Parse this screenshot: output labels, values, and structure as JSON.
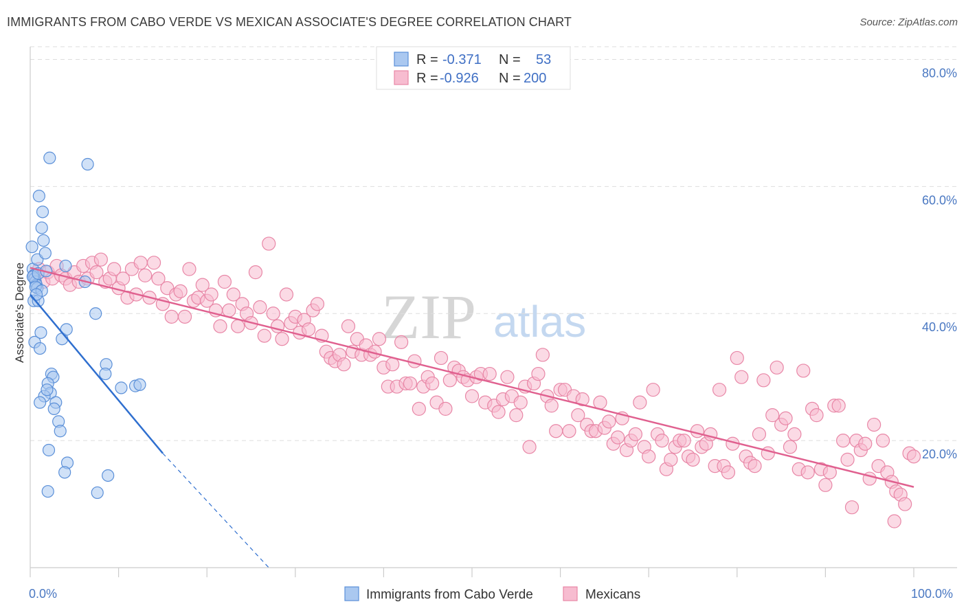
{
  "header": {
    "title": "IMMIGRANTS FROM CABO VERDE VS MEXICAN ASSOCIATE'S DEGREE CORRELATION CHART",
    "source": "Source: ZipAtlas.com"
  },
  "watermark": {
    "part1": "ZIP",
    "part2": "atlas"
  },
  "colors": {
    "blue_fill": "#aac8f0",
    "blue_stroke": "#5a8fd8",
    "blue_line": "#2f6fcf",
    "pink_fill": "#f7bcd0",
    "pink_stroke": "#e886a6",
    "pink_line": "#e0608f",
    "grid": "#dddddd",
    "tick_text": "#4a78c2"
  },
  "legend": {
    "rows": [
      {
        "r_label": "R =",
        "r_value": "-0.371",
        "n_label": "N =",
        "n_value": "53"
      },
      {
        "r_label": "R =",
        "r_value": "-0.926",
        "n_label": "N =",
        "n_value": "200"
      }
    ]
  },
  "bottom_legend": {
    "items": [
      {
        "label": "Immigrants from Cabo Verde"
      },
      {
        "label": "Mexicans"
      }
    ]
  },
  "chart_data": {
    "type": "scatter",
    "title": "IMMIGRANTS FROM CABO VERDE VS MEXICAN ASSOCIATE'S DEGREE CORRELATION CHART",
    "xlabel": "",
    "ylabel": "Associate's Degree",
    "xlim": [
      0,
      100
    ],
    "ylim": [
      0,
      82
    ],
    "x_tick_labels": [
      "0.0%",
      "100.0%"
    ],
    "y_ticks": [
      20,
      40,
      60,
      80
    ],
    "y_tick_labels": [
      "20.0%",
      "40.0%",
      "60.0%",
      "80.0%"
    ],
    "grid": true,
    "legend_position": "top-center",
    "series": [
      {
        "name": "Immigrants from Cabo Verde",
        "r": -0.371,
        "n": 53,
        "trend": {
          "x0": 0,
          "y0": 43,
          "x1": 15,
          "y1": 18,
          "dash_to_x": 27,
          "dash_to_y": 0
        },
        "points": [
          [
            0.2,
            50.5
          ],
          [
            0.3,
            47
          ],
          [
            0.4,
            46
          ],
          [
            0.5,
            45.5
          ],
          [
            0.6,
            45
          ],
          [
            0.7,
            44.5
          ],
          [
            0.8,
            44
          ],
          [
            0.4,
            42
          ],
          [
            0.9,
            42
          ],
          [
            0.5,
            35.5
          ],
          [
            1.1,
            34.5
          ],
          [
            1.2,
            37
          ],
          [
            0.8,
            48.5
          ],
          [
            1.5,
            51.5
          ],
          [
            1.7,
            49.5
          ],
          [
            1.3,
            53.5
          ],
          [
            1.4,
            56
          ],
          [
            1.0,
            58.5
          ],
          [
            2.2,
            64.5
          ],
          [
            6.5,
            63.5
          ],
          [
            3.6,
            36
          ],
          [
            4.1,
            37.5
          ],
          [
            4.0,
            47.5
          ],
          [
            6.2,
            45
          ],
          [
            7.4,
            40
          ],
          [
            2.4,
            30.5
          ],
          [
            2.6,
            30
          ],
          [
            2.0,
            29
          ],
          [
            2.3,
            27.5
          ],
          [
            1.6,
            27
          ],
          [
            1.1,
            26
          ],
          [
            2.9,
            26
          ],
          [
            3.2,
            23
          ],
          [
            3.4,
            21.5
          ],
          [
            2.1,
            18.5
          ],
          [
            4.2,
            16.5
          ],
          [
            3.9,
            15
          ],
          [
            8.6,
            32
          ],
          [
            8.5,
            30.5
          ],
          [
            10.3,
            28.3
          ],
          [
            11.9,
            28.6
          ],
          [
            12.4,
            28.8
          ],
          [
            8.8,
            14.5
          ],
          [
            2.0,
            12
          ],
          [
            7.6,
            11.8
          ],
          [
            0.3,
            45.8
          ],
          [
            0.9,
            46.3
          ],
          [
            1.8,
            46.7
          ],
          [
            0.6,
            44.2
          ],
          [
            1.3,
            43.6
          ],
          [
            2.7,
            25
          ],
          [
            0.7,
            43
          ],
          [
            1.9,
            28
          ]
        ]
      },
      {
        "name": "Mexicans",
        "r": -0.926,
        "n": 200,
        "trend": {
          "x0": 0,
          "y0": 47.2,
          "x1": 100,
          "y1": 12.7
        },
        "points": [
          [
            0.5,
            46
          ],
          [
            1,
            47
          ],
          [
            1.5,
            45
          ],
          [
            2,
            46.5
          ],
          [
            2.5,
            45.5
          ],
          [
            3,
            47.5
          ],
          [
            3.5,
            46
          ],
          [
            4,
            45.5
          ],
          [
            4.5,
            44.5
          ],
          [
            5,
            46.5
          ],
          [
            5.5,
            45
          ],
          [
            6,
            47.5
          ],
          [
            6.5,
            45.5
          ],
          [
            7,
            48
          ],
          [
            7.5,
            46.5
          ],
          [
            8,
            48.5
          ],
          [
            8.5,
            45
          ],
          [
            9,
            45.5
          ],
          [
            9.5,
            47
          ],
          [
            10,
            44
          ],
          [
            10.5,
            45.5
          ],
          [
            11,
            42.5
          ],
          [
            11.5,
            47
          ],
          [
            12,
            43
          ],
          [
            12.5,
            48
          ],
          [
            13,
            46
          ],
          [
            13.5,
            42.5
          ],
          [
            14,
            48
          ],
          [
            14.5,
            45.5
          ],
          [
            15,
            41.5
          ],
          [
            15.5,
            44
          ],
          [
            16,
            39.5
          ],
          [
            16.5,
            43
          ],
          [
            17,
            43.5
          ],
          [
            17.5,
            39.5
          ],
          [
            18,
            47
          ],
          [
            18.5,
            42
          ],
          [
            19,
            42.5
          ],
          [
            19.5,
            44.5
          ],
          [
            20,
            42
          ],
          [
            20.5,
            43
          ],
          [
            21,
            40.5
          ],
          [
            21.5,
            38
          ],
          [
            22,
            45
          ],
          [
            22.5,
            40.5
          ],
          [
            23,
            43
          ],
          [
            23.5,
            38
          ],
          [
            24,
            41.5
          ],
          [
            24.5,
            40
          ],
          [
            25,
            38.5
          ],
          [
            25.5,
            46.5
          ],
          [
            26,
            41
          ],
          [
            26.5,
            36.5
          ],
          [
            27,
            51
          ],
          [
            27.5,
            40
          ],
          [
            28,
            38
          ],
          [
            28.5,
            36
          ],
          [
            29,
            43
          ],
          [
            29.5,
            38.5
          ],
          [
            30,
            39.5
          ],
          [
            30.5,
            37
          ],
          [
            31,
            39
          ],
          [
            31.5,
            37.5
          ],
          [
            32,
            40.5
          ],
          [
            32.5,
            41.5
          ],
          [
            33,
            36.5
          ],
          [
            33.5,
            34
          ],
          [
            34,
            33
          ],
          [
            34.5,
            32.5
          ],
          [
            35,
            33.5
          ],
          [
            35.5,
            32
          ],
          [
            36,
            38
          ],
          [
            36.5,
            34
          ],
          [
            37,
            36
          ],
          [
            37.5,
            33.5
          ],
          [
            38,
            35
          ],
          [
            38.5,
            33.5
          ],
          [
            39,
            34
          ],
          [
            39.5,
            36
          ],
          [
            40,
            31.5
          ],
          [
            40.5,
            28.5
          ],
          [
            41,
            32
          ],
          [
            41.5,
            28.5
          ],
          [
            42,
            35.5
          ],
          [
            42.5,
            29
          ],
          [
            43,
            29
          ],
          [
            43.5,
            32.5
          ],
          [
            44,
            25
          ],
          [
            44.5,
            28.5
          ],
          [
            45,
            30
          ],
          [
            45.5,
            29
          ],
          [
            46,
            26
          ],
          [
            46.5,
            33
          ],
          [
            47,
            25
          ],
          [
            47.5,
            29.5
          ],
          [
            48,
            31.5
          ],
          [
            48.5,
            31
          ],
          [
            49,
            30
          ],
          [
            49.5,
            29.5
          ],
          [
            50,
            27
          ],
          [
            50.5,
            30
          ],
          [
            51,
            30.5
          ],
          [
            51.5,
            26
          ],
          [
            52,
            30.5
          ],
          [
            52.5,
            25.5
          ],
          [
            53,
            24.5
          ],
          [
            53.5,
            26.5
          ],
          [
            54,
            30
          ],
          [
            54.5,
            27
          ],
          [
            55,
            24
          ],
          [
            55.5,
            26
          ],
          [
            56,
            28.5
          ],
          [
            56.5,
            19
          ],
          [
            57,
            29
          ],
          [
            57.5,
            30.5
          ],
          [
            58,
            33.5
          ],
          [
            58.5,
            27
          ],
          [
            59,
            25.5
          ],
          [
            59.5,
            21.5
          ],
          [
            60,
            28
          ],
          [
            60.5,
            28
          ],
          [
            61,
            21.5
          ],
          [
            61.5,
            27
          ],
          [
            62,
            24
          ],
          [
            62.5,
            26.5
          ],
          [
            63,
            22.5
          ],
          [
            63.5,
            21.5
          ],
          [
            64,
            21.5
          ],
          [
            64.5,
            26
          ],
          [
            65,
            22
          ],
          [
            65.5,
            23
          ],
          [
            66,
            19.5
          ],
          [
            66.5,
            20.5
          ],
          [
            67,
            23.5
          ],
          [
            67.5,
            18.5
          ],
          [
            68,
            20
          ],
          [
            68.5,
            21
          ],
          [
            69,
            26
          ],
          [
            69.5,
            19
          ],
          [
            70,
            17.5
          ],
          [
            70.5,
            28
          ],
          [
            71,
            21
          ],
          [
            71.5,
            20
          ],
          [
            72,
            15.5
          ],
          [
            72.5,
            17
          ],
          [
            73,
            19
          ],
          [
            73.5,
            20
          ],
          [
            74,
            20
          ],
          [
            74.5,
            17.5
          ],
          [
            75,
            17
          ],
          [
            75.5,
            21.5
          ],
          [
            76,
            19
          ],
          [
            76.5,
            19.5
          ],
          [
            77,
            21
          ],
          [
            77.5,
            16
          ],
          [
            78,
            28
          ],
          [
            78.5,
            16
          ],
          [
            79,
            15
          ],
          [
            79.5,
            19.5
          ],
          [
            80,
            33
          ],
          [
            80.5,
            30
          ],
          [
            81,
            17.5
          ],
          [
            81.5,
            16.5
          ],
          [
            82,
            16
          ],
          [
            82.5,
            21
          ],
          [
            83,
            29.5
          ],
          [
            83.5,
            18
          ],
          [
            84,
            24
          ],
          [
            84.5,
            31.5
          ],
          [
            85,
            22.5
          ],
          [
            85.5,
            23.5
          ],
          [
            86,
            19
          ],
          [
            86.5,
            21
          ],
          [
            87,
            15.5
          ],
          [
            87.5,
            31
          ],
          [
            88,
            15
          ],
          [
            88.5,
            25
          ],
          [
            89,
            24
          ],
          [
            89.5,
            15.5
          ],
          [
            90,
            13
          ],
          [
            90.5,
            15
          ],
          [
            91,
            25.5
          ],
          [
            91.5,
            25.5
          ],
          [
            92,
            20
          ],
          [
            92.5,
            17
          ],
          [
            93,
            9.5
          ],
          [
            93.5,
            20
          ],
          [
            94,
            18.5
          ],
          [
            94.5,
            19.5
          ],
          [
            95,
            14
          ],
          [
            95.5,
            22.5
          ],
          [
            96,
            16
          ],
          [
            96.5,
            20
          ],
          [
            97,
            15
          ],
          [
            97.5,
            13.5
          ],
          [
            98,
            12
          ],
          [
            98.5,
            11.5
          ],
          [
            99,
            10
          ],
          [
            99.5,
            18
          ],
          [
            100,
            17.5
          ],
          [
            97.8,
            7.3
          ]
        ]
      }
    ]
  }
}
